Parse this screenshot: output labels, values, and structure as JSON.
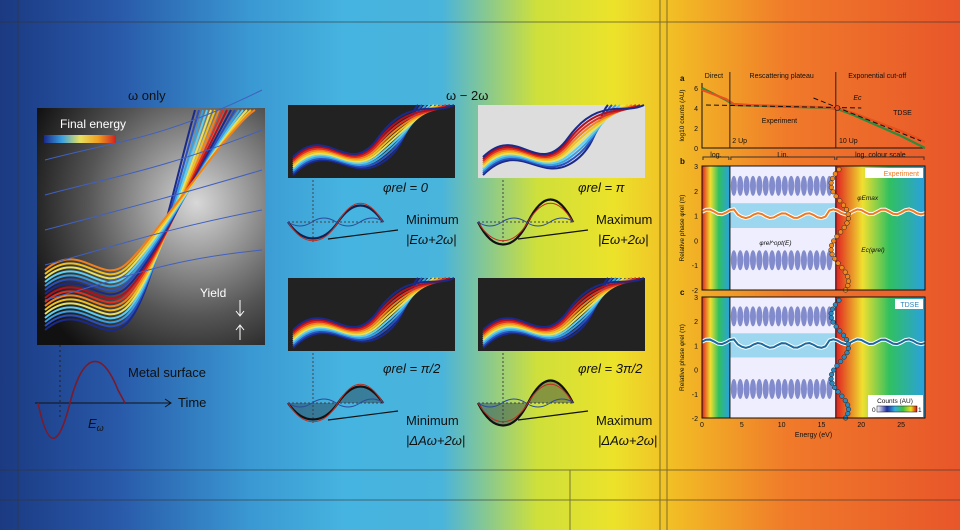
{
  "left": {
    "title": "ω only",
    "legend_label": "Final energy",
    "yield_label": "Yield",
    "surface_label": "Metal surface",
    "time_label": "Time",
    "field_label": "E",
    "field_sub": "ω"
  },
  "middle": {
    "title": "ω − 2ω",
    "panels": [
      {
        "phase": "φrel = 0",
        "extreme": "Minimum",
        "quantity": "|Eω+2ω|"
      },
      {
        "phase": "φrel = π",
        "extreme": "Maximum",
        "quantity": "|Eω+2ω|"
      },
      {
        "phase": "φrel = π/2",
        "extreme": "Minimum",
        "quantity": "|ΔAω+2ω|"
      },
      {
        "phase": "φrel = 3π/2",
        "extreme": "Maximum",
        "quantity": "|ΔAω+2ω|"
      }
    ]
  },
  "chart_data": [
    {
      "panel": "a",
      "type": "line",
      "ylabel": "log10 counts (AU)",
      "xlim": [
        0,
        28
      ],
      "ylim": [
        0,
        6.5
      ],
      "yticks": [
        0,
        2,
        4,
        6
      ],
      "regions": [
        "Direct",
        "Rescattering plateau",
        "Exponential cut-off"
      ],
      "region_markers": [
        "2 Up",
        "10 Up"
      ],
      "annotations": [
        "Ec",
        "Experiment",
        "TDSE"
      ],
      "series": [
        {
          "name": "Experiment",
          "color": "#2f8a3a",
          "x": [
            0,
            1,
            2,
            3,
            4,
            6,
            8,
            10,
            12,
            14,
            16,
            17,
            19,
            21,
            23,
            25,
            27,
            28
          ],
          "y": [
            6,
            5.6,
            5.2,
            4.8,
            4.3,
            4.25,
            4.2,
            4.15,
            4.1,
            4.05,
            4.0,
            3.9,
            3.3,
            2.6,
            1.9,
            1.2,
            0.4,
            0
          ]
        },
        {
          "name": "TDSE",
          "color": "#e8501e",
          "x": [
            0,
            1,
            2,
            3,
            4,
            6,
            8,
            10,
            12,
            14,
            16,
            17,
            19,
            21,
            23,
            25,
            27,
            28
          ],
          "y": [
            5.8,
            5.5,
            5.2,
            4.9,
            4.4,
            4.3,
            4.25,
            4.2,
            4.15,
            4.1,
            4.05,
            4.0,
            3.5,
            2.9,
            2.3,
            1.7,
            1.0,
            0.6
          ]
        }
      ]
    },
    {
      "panel": "b",
      "type": "heatmap",
      "label": "Experiment",
      "ylabel": "Relative phase φrel (π)",
      "ylim": [
        -2,
        3
      ],
      "xlim": [
        0,
        28
      ],
      "yticks": [
        -2,
        -1,
        0,
        1,
        2,
        3
      ],
      "scale_labels": [
        "log.",
        "Lin.",
        "log. colour scale"
      ],
      "annotations": [
        "φrel^opt(E)",
        "φEmax",
        "Ec(φrel)"
      ]
    },
    {
      "panel": "c",
      "type": "heatmap",
      "label": "TDSE",
      "xlabel": "Energy (eV)",
      "ylabel": "Relative phase φrel (π)",
      "xlim": [
        0,
        28
      ],
      "ylim": [
        -2,
        3
      ],
      "xticks": [
        0,
        5,
        10,
        15,
        20,
        25
      ],
      "yticks": [
        -2,
        -1,
        0,
        1,
        2,
        3
      ],
      "colorbar": {
        "title": "Counts (AU)",
        "min": "0",
        "max": "1"
      }
    }
  ]
}
